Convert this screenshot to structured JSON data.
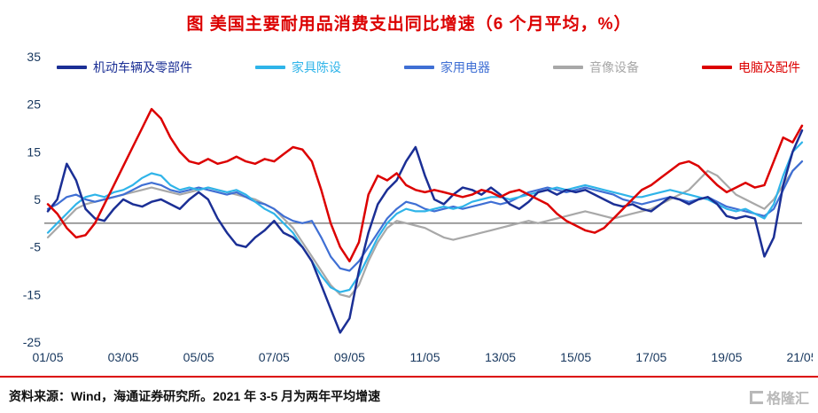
{
  "title": "图  美国主要耐用品消费支出同比增速（6 个月平均，%）",
  "footer": {
    "source_note": "资料来源：Wind，海通证券研究所。2021 年 3-5 月为两年平均增速",
    "logo_text": "格隆汇"
  },
  "colors": {
    "title": "#dc0000",
    "rule": "#dc0000",
    "axis_label": "#17375e",
    "zero_line": "#8c8c8c",
    "background": "#ffffff",
    "logo_gray": "#b9b9b9"
  },
  "chart_data": {
    "type": "line",
    "title": "图  美国主要耐用品消费支出同比增速（6 个月平均，%）",
    "x_description": "monthly dates from 01/05 (May 2001) to 21/05 (May 2021), sampled quarterly (81 points)",
    "x_tick_labels": [
      "01/05",
      "03/05",
      "05/05",
      "07/05",
      "09/05",
      "11/05",
      "13/05",
      "15/05",
      "17/05",
      "19/05",
      "21/05"
    ],
    "x_tick_indices": [
      0,
      8,
      16,
      24,
      32,
      40,
      48,
      56,
      64,
      72,
      80
    ],
    "y_ticks": [
      35,
      25,
      15,
      5,
      -5,
      -15,
      -25
    ],
    "ylim": [
      -25,
      35
    ],
    "grid": false,
    "zero_line": true,
    "legend_position": "top-inside",
    "series": [
      {
        "name": "机动车辆及零部件",
        "color": "#1b2f95",
        "values": [
          2.5,
          5,
          12.5,
          9,
          3,
          1,
          0.5,
          3,
          5,
          4,
          3.5,
          4.5,
          5,
          4,
          3,
          5,
          6.5,
          5,
          1,
          -2,
          -4.5,
          -5,
          -3,
          -1.5,
          0.5,
          -2,
          -3,
          -5,
          -8,
          -13,
          -18,
          -23,
          -20,
          -10,
          -2,
          4,
          7,
          9,
          13,
          16,
          10,
          5,
          4,
          6,
          7.5,
          7,
          6,
          7.5,
          6,
          4,
          3,
          4.5,
          6.5,
          7,
          6,
          7,
          6.5,
          7,
          6,
          5,
          4,
          3.5,
          4,
          3,
          2.5,
          4,
          5.5,
          5,
          4,
          5,
          5.5,
          4,
          1.5,
          1,
          1.5,
          1,
          -7,
          -3,
          8,
          15,
          19.5
        ]
      },
      {
        "name": "家具陈设",
        "color": "#2fb4e9",
        "values": [
          -2,
          0,
          2,
          4,
          5.5,
          6,
          5.5,
          6.5,
          7,
          8,
          9.5,
          10.5,
          10,
          8,
          7,
          7.5,
          7,
          7.5,
          7,
          6.5,
          7,
          6,
          4.5,
          3,
          2,
          0,
          -2,
          -5,
          -8,
          -11,
          -13.5,
          -14.5,
          -14,
          -11,
          -7,
          -3,
          0,
          2,
          3,
          2.5,
          2.5,
          3,
          3.5,
          3,
          3.5,
          4.5,
          5,
          5.5,
          5.5,
          5,
          5.5,
          6,
          6.5,
          7,
          7.5,
          7,
          7.5,
          8,
          7.5,
          7,
          6.5,
          6,
          5.5,
          5.5,
          6,
          6.5,
          7,
          6.5,
          6,
          5.5,
          5,
          4,
          3,
          2.5,
          3,
          2,
          1,
          4,
          10,
          15,
          17
        ]
      },
      {
        "name": "家用电器",
        "color": "#3f6fd4",
        "values": [
          3,
          4,
          5.5,
          6,
          5,
          4.5,
          5,
          5.5,
          6,
          7,
          8,
          8.5,
          8,
          7,
          6.5,
          7,
          7.5,
          7,
          6.5,
          6,
          6.5,
          5.5,
          4.5,
          4,
          3,
          1.5,
          0.5,
          0,
          0.5,
          -3,
          -7,
          -9.5,
          -10,
          -8,
          -5,
          -2,
          1,
          3,
          4.5,
          4,
          3,
          2.5,
          3,
          3.5,
          3,
          3.5,
          4,
          4.5,
          4,
          4.5,
          5.5,
          6.5,
          7,
          7.5,
          7,
          6.5,
          7,
          7.5,
          7,
          6.5,
          6,
          5,
          4.5,
          4,
          4.5,
          5,
          5.5,
          5,
          4.5,
          5,
          5.5,
          4.5,
          3.5,
          3,
          2.5,
          2,
          1.5,
          3,
          7,
          11,
          13
        ]
      },
      {
        "name": "音像设备",
        "color": "#a8a8a8",
        "values": [
          -3,
          -1,
          1,
          3,
          4,
          4.5,
          5,
          5.5,
          6,
          6.5,
          7,
          7.5,
          7,
          6.5,
          6,
          6.5,
          7,
          7.5,
          7,
          6.5,
          6,
          5.5,
          5,
          4,
          3,
          1,
          -1,
          -4,
          -7,
          -10,
          -13,
          -15,
          -15.5,
          -13,
          -8,
          -4,
          -1,
          0.5,
          0,
          -0.5,
          -1,
          -2,
          -3,
          -3.5,
          -3,
          -2.5,
          -2,
          -1.5,
          -1,
          -0.5,
          0,
          0.5,
          0,
          0.5,
          1,
          1.5,
          2,
          2.5,
          2,
          1.5,
          1,
          1.5,
          2,
          2.5,
          3,
          4,
          5,
          6,
          7,
          9,
          11,
          10,
          8,
          6,
          5,
          4,
          3,
          5,
          8,
          11,
          13
        ]
      },
      {
        "name": "电脑及配件",
        "color": "#dc0000",
        "values": [
          4,
          2,
          -1,
          -3,
          -2.5,
          0,
          4,
          8,
          12,
          16,
          20,
          24,
          22,
          18,
          15,
          13,
          12.5,
          13.5,
          12.5,
          13,
          14,
          13,
          12.5,
          13.5,
          13,
          14.5,
          16,
          15.5,
          13,
          7,
          0,
          -5,
          -8,
          -4,
          6,
          10,
          9,
          10.5,
          8,
          7,
          6.5,
          7,
          6.5,
          6,
          5.5,
          6,
          7,
          6.5,
          5.5,
          6.5,
          7,
          6,
          5,
          4,
          2,
          0.5,
          -0.5,
          -1.5,
          -2,
          -1,
          1,
          3,
          5,
          7,
          8,
          9.5,
          11,
          12.5,
          13,
          12,
          10,
          8,
          6.5,
          7.5,
          8.5,
          7.5,
          8,
          13,
          18,
          17,
          20.5
        ]
      }
    ]
  }
}
